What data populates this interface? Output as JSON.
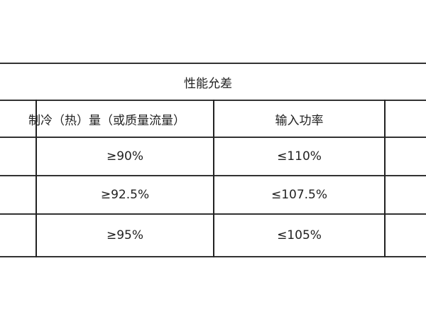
{
  "table": {
    "title": "性能允差",
    "headers": [
      "制冷（热）量（或质量流量）",
      "输入功率"
    ],
    "rows": [
      [
        "≥90%",
        "≤110%"
      ],
      [
        "≥92.5%",
        "≤107.5%"
      ],
      [
        "≥95%",
        "≤105%"
      ]
    ]
  }
}
